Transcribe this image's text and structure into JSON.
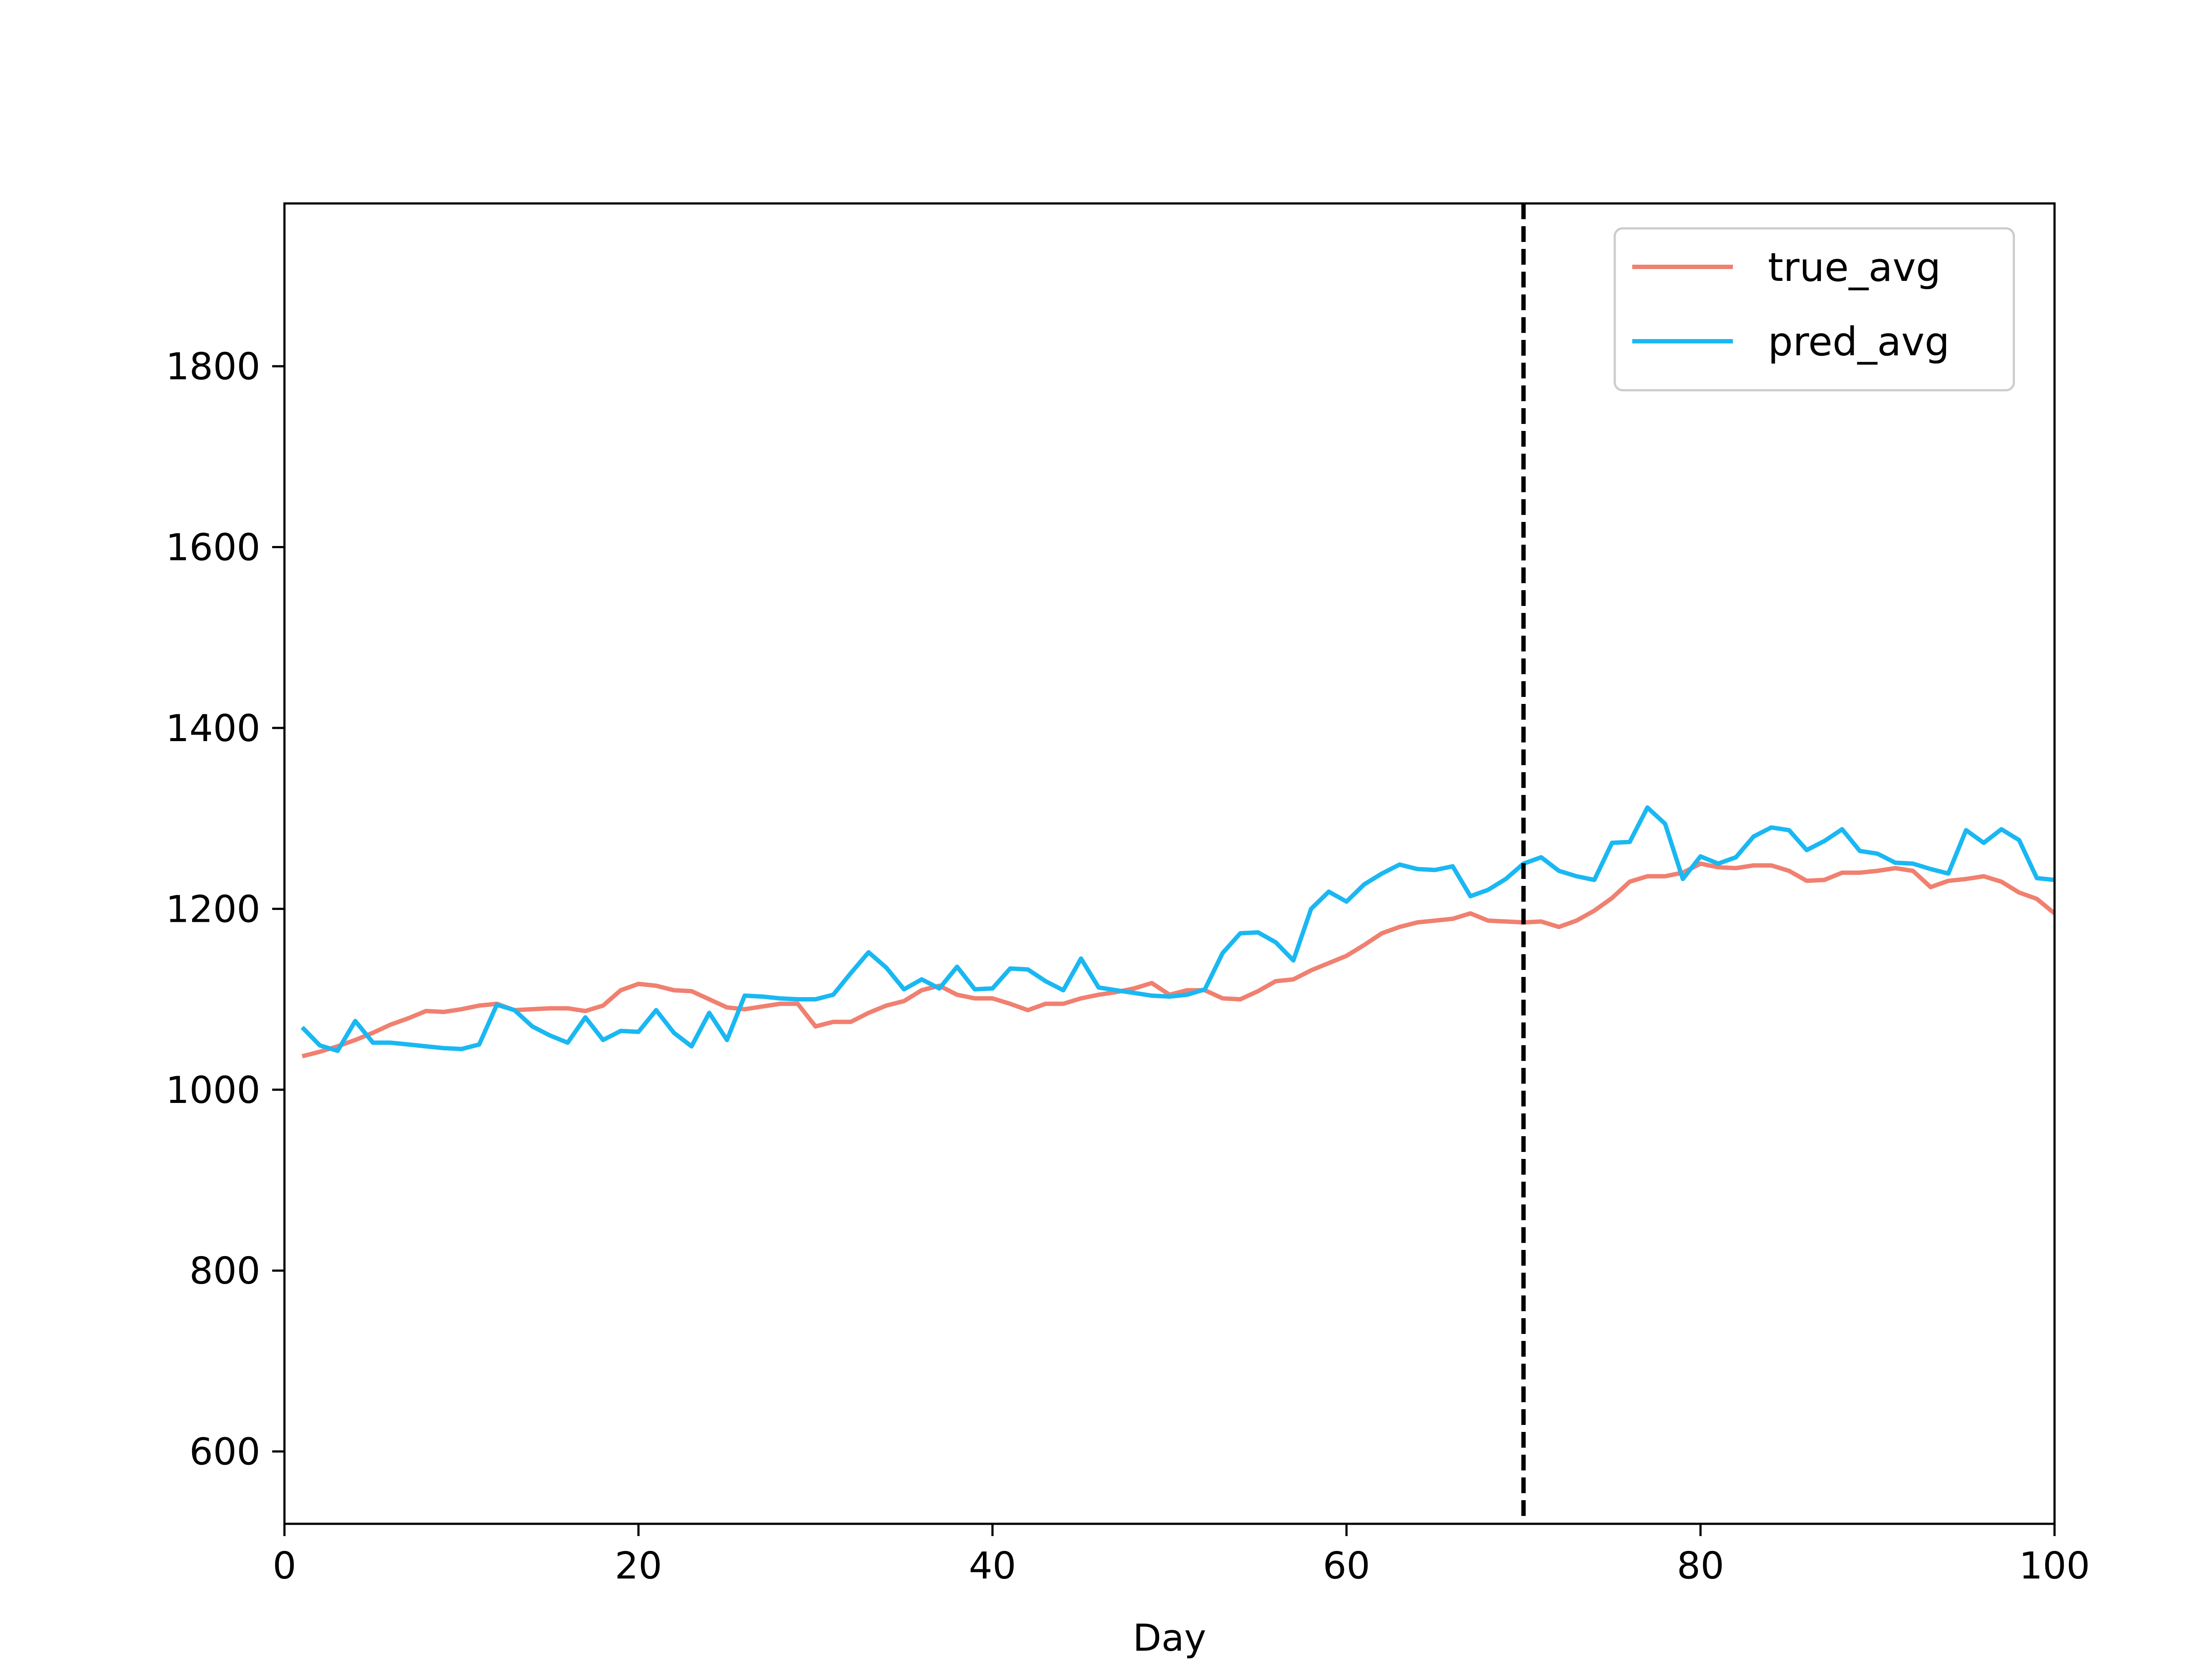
{
  "chart_data": {
    "type": "line",
    "title": "",
    "xlabel": "Day",
    "ylabel": "",
    "xlim": [
      0,
      100
    ],
    "ylim": [
      520,
      1980
    ],
    "xticks": [
      "0",
      "20",
      "40",
      "60",
      "80",
      "100"
    ],
    "yticks": [
      "600",
      "800",
      "1000",
      "1200",
      "1400",
      "1600",
      "1800"
    ],
    "grid": false,
    "legend_position": "top-right",
    "vline": {
      "x": 70,
      "style": "dashed",
      "color": "#000000"
    },
    "x": [
      1,
      2,
      3,
      4,
      5,
      6,
      7,
      8,
      9,
      10,
      11,
      12,
      13,
      14,
      15,
      16,
      17,
      18,
      19,
      20,
      21,
      22,
      23,
      24,
      25,
      26,
      27,
      28,
      29,
      30,
      31,
      32,
      33,
      34,
      35,
      36,
      37,
      38,
      39,
      40,
      41,
      42,
      43,
      44,
      45,
      46,
      47,
      48,
      49,
      50,
      51,
      52,
      53,
      54,
      55,
      56,
      57,
      58,
      59,
      60,
      61,
      62,
      63,
      64,
      65,
      66,
      67,
      68,
      69,
      70,
      71,
      72,
      73,
      74,
      75,
      76,
      77,
      78,
      79,
      80,
      81,
      82,
      83,
      84,
      85,
      86,
      87,
      88,
      89,
      90,
      91,
      92,
      93,
      94,
      95,
      96,
      97,
      98,
      99,
      100
    ],
    "series": [
      {
        "name": "true_avg",
        "color": "#f08070",
        "values": [
          1037,
          1042,
          1048,
          1055,
          1063,
          1072,
          1079,
          1087,
          1086,
          1089,
          1093,
          1095,
          1088,
          1089,
          1090,
          1090,
          1087,
          1093,
          1110,
          1117,
          1115,
          1110,
          1109,
          1100,
          1091,
          1089,
          1092,
          1095,
          1095,
          1070,
          1075,
          1075,
          1085,
          1093,
          1098,
          1110,
          1115,
          1105,
          1101,
          1101,
          1095,
          1088,
          1095,
          1095,
          1101,
          1105,
          1108,
          1112,
          1118,
          1105,
          1110,
          1110,
          1101,
          1100,
          1109,
          1120,
          1122,
          1132,
          1140,
          1148,
          1160,
          1173,
          1180,
          1185,
          1187,
          1189,
          1195,
          1187,
          1186,
          1185,
          1186,
          1180,
          1187,
          1198,
          1212,
          1230,
          1236,
          1236,
          1240,
          1250,
          1246,
          1245,
          1248,
          1248,
          1242,
          1231,
          1232,
          1240,
          1240,
          1242,
          1245,
          1242,
          1224,
          1231,
          1233,
          1236,
          1230,
          1218,
          1211,
          1195
        ]
      },
      {
        "name": "pred_avg",
        "color": "#1ab8f2",
        "values": [
          1069,
          1049,
          1043,
          1076,
          1052,
          1052,
          1050,
          1048,
          1046,
          1045,
          1050,
          1094,
          1088,
          1070,
          1060,
          1052,
          1080,
          1055,
          1065,
          1064,
          1088,
          1063,
          1048,
          1085,
          1055,
          1104,
          1103,
          1101,
          1100,
          1100,
          1105,
          1129,
          1152,
          1135,
          1111,
          1122,
          1112,
          1136,
          1111,
          1112,
          1134,
          1133,
          1120,
          1110,
          1145,
          1113,
          1110,
          1107,
          1104,
          1103,
          1105,
          1111,
          1151,
          1173,
          1174,
          1163,
          1143,
          1200,
          1219,
          1208,
          1227,
          1239,
          1249,
          1244,
          1243,
          1247,
          1214,
          1221,
          1233,
          1250,
          1257,
          1242,
          1236,
          1232,
          1273,
          1274,
          1312,
          1294,
          1233,
          1258,
          1250,
          1257,
          1280,
          1290,
          1287,
          1265,
          1275,
          1288,
          1264,
          1261,
          1251,
          1250,
          1244,
          1239,
          1287,
          1273,
          1288,
          1276,
          1234,
          1232
        ]
      }
    ]
  }
}
